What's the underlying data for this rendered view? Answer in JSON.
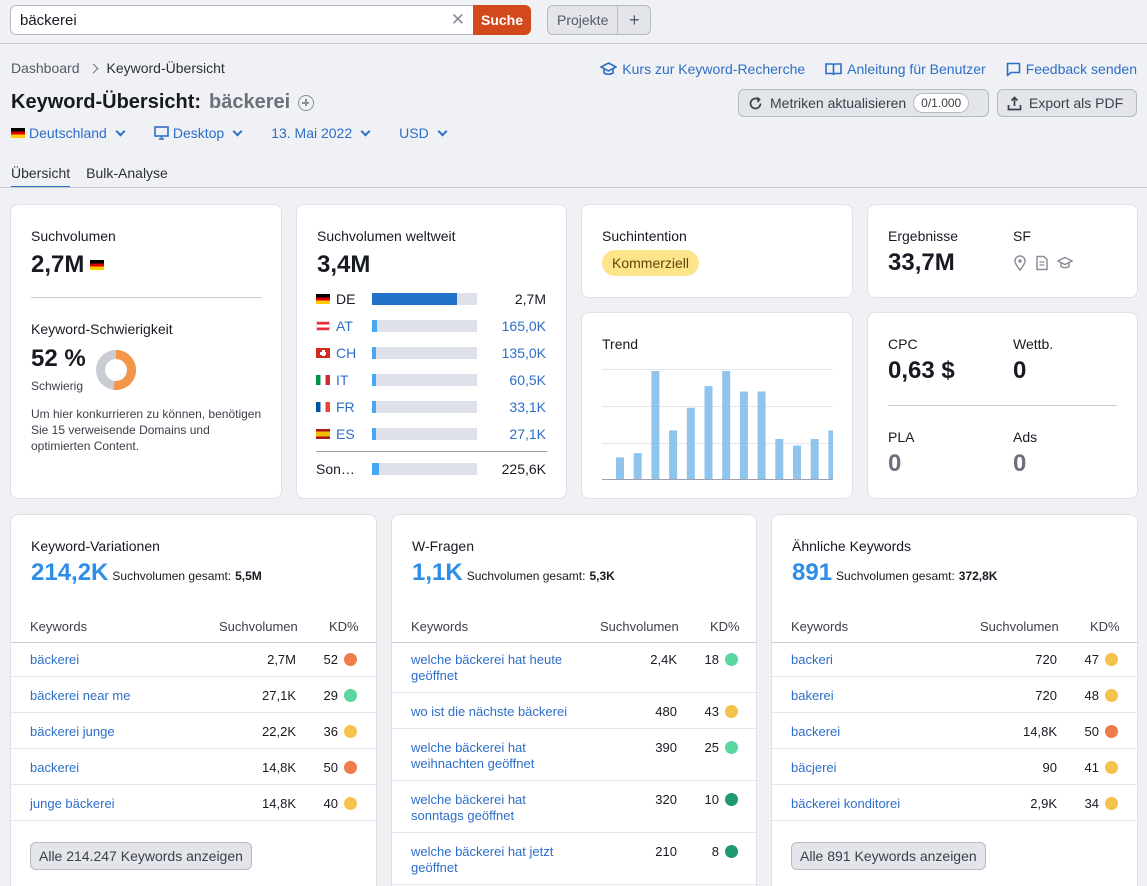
{
  "search": {
    "value": "bäckerei",
    "button": "Suche"
  },
  "projects": {
    "label": "Projekte",
    "add": "+"
  },
  "breadcrumb": {
    "root": "Dashboard",
    "current": "Keyword-Übersicht"
  },
  "header_links": {
    "course": "Kurs zur Keyword-Recherche",
    "guide": "Anleitung für Benutzer",
    "feedback": "Feedback senden"
  },
  "title": {
    "label": "Keyword-Übersicht:",
    "keyword": "bäckerei"
  },
  "buttons": {
    "refresh": "Metriken aktualisieren",
    "refresh_count": "0/1.000",
    "export": "Export als PDF"
  },
  "filters": {
    "country": "Deutschland",
    "device": "Desktop",
    "date": "13. Mai 2022",
    "currency": "USD"
  },
  "tabs": {
    "overview": "Übersicht",
    "bulk": "Bulk-Analyse"
  },
  "volume": {
    "title": "Suchvolumen",
    "value": "2,7M",
    "difficulty_title": "Keyword-Schwierigkeit",
    "difficulty_value": "52 %",
    "difficulty_label": "Schwierig",
    "difficulty_pct": 52,
    "hint": "Um hier konkurrieren zu können, benötigen Sie 15 verweisende Domains und optimierten Content."
  },
  "global": {
    "title": "Suchvolumen weltweit",
    "value": "3,4M",
    "rows": [
      {
        "code": "DE",
        "value": "2,7M",
        "share": 0.81
      },
      {
        "code": "AT",
        "value": "165,0K",
        "share": 0.049
      },
      {
        "code": "CH",
        "value": "135,0K",
        "share": 0.04
      },
      {
        "code": "IT",
        "value": "60,5K",
        "share": 0.018
      },
      {
        "code": "FR",
        "value": "33,1K",
        "share": 0.01
      },
      {
        "code": "ES",
        "value": "27,1K",
        "share": 0.008
      }
    ],
    "other": {
      "code": "Son…",
      "value": "225,6K",
      "share": 0.066
    }
  },
  "intent": {
    "title": "Suchintention",
    "badge": "Kommerziell"
  },
  "results": {
    "title": "Ergebnisse",
    "value": "33,7M",
    "sf_title": "SF"
  },
  "trend": {
    "title": "Trend",
    "values": [
      0.2,
      0.24,
      1.0,
      0.45,
      0.66,
      0.86,
      1.0,
      0.81,
      0.81,
      0.37,
      0.31,
      0.37,
      0.45
    ]
  },
  "cpc": {
    "title": "CPC",
    "value": "0,63 $",
    "comp_title": "Wettb.",
    "comp_value": "0",
    "pla_title": "PLA",
    "pla_value": "0",
    "ads_title": "Ads",
    "ads_value": "0"
  },
  "colors": {
    "orange": "#f07c4a",
    "green": "#5bd6a0",
    "yellow": "#f5c24b",
    "darkgreen": "#1e9a6e",
    "blue": "#2d6ec8"
  },
  "table_headers": {
    "kw": "Keywords",
    "vol": "Suchvolumen",
    "kd": "KD%"
  },
  "variations": {
    "title": "Keyword-Variationen",
    "value": "214,2K",
    "total_label": "Suchvolumen gesamt:",
    "total": "5,5M",
    "rows": [
      {
        "kw": "bäckerei",
        "vol": "2,7M",
        "kd": "52",
        "color": "orange"
      },
      {
        "kw": "bäckerei near me",
        "vol": "27,1K",
        "kd": "29",
        "color": "green"
      },
      {
        "kw": "bäckerei junge",
        "vol": "22,2K",
        "kd": "36",
        "color": "yellow"
      },
      {
        "kw": "backerei",
        "vol": "14,8K",
        "kd": "50",
        "color": "orange"
      },
      {
        "kw": "junge bäckerei",
        "vol": "14,8K",
        "kd": "40",
        "color": "yellow"
      }
    ],
    "show_all": "Alle 214.247 Keywords anzeigen"
  },
  "questions": {
    "title": "W-Fragen",
    "value": "1,1K",
    "total_label": "Suchvolumen gesamt:",
    "total": "5,3K",
    "rows": [
      {
        "kw": "welche bäckerei hat heute geöffnet",
        "vol": "2,4K",
        "kd": "18",
        "color": "green"
      },
      {
        "kw": "wo ist die nächste bäckerei",
        "vol": "480",
        "kd": "43",
        "color": "yellow"
      },
      {
        "kw": "welche bäckerei hat weihnachten geöffnet",
        "vol": "390",
        "kd": "25",
        "color": "green"
      },
      {
        "kw": "welche bäckerei hat sonntags geöffnet",
        "vol": "320",
        "kd": "10",
        "color": "darkgreen"
      },
      {
        "kw": "welche bäckerei hat jetzt geöffnet",
        "vol": "210",
        "kd": "8",
        "color": "darkgreen"
      }
    ]
  },
  "related": {
    "title": "Ähnliche Keywords",
    "value": "891",
    "total_label": "Suchvolumen gesamt:",
    "total": "372,8K",
    "rows": [
      {
        "kw": "backeri",
        "vol": "720",
        "kd": "47",
        "color": "yellow"
      },
      {
        "kw": "bakerei",
        "vol": "720",
        "kd": "48",
        "color": "yellow"
      },
      {
        "kw": "backerei",
        "vol": "14,8K",
        "kd": "50",
        "color": "orange"
      },
      {
        "kw": "bäcjerei",
        "vol": "90",
        "kd": "41",
        "color": "yellow"
      },
      {
        "kw": "bäckerei konditorei",
        "vol": "2,9K",
        "kd": "34",
        "color": "yellow"
      }
    ],
    "show_all": "Alle 891 Keywords anzeigen"
  }
}
